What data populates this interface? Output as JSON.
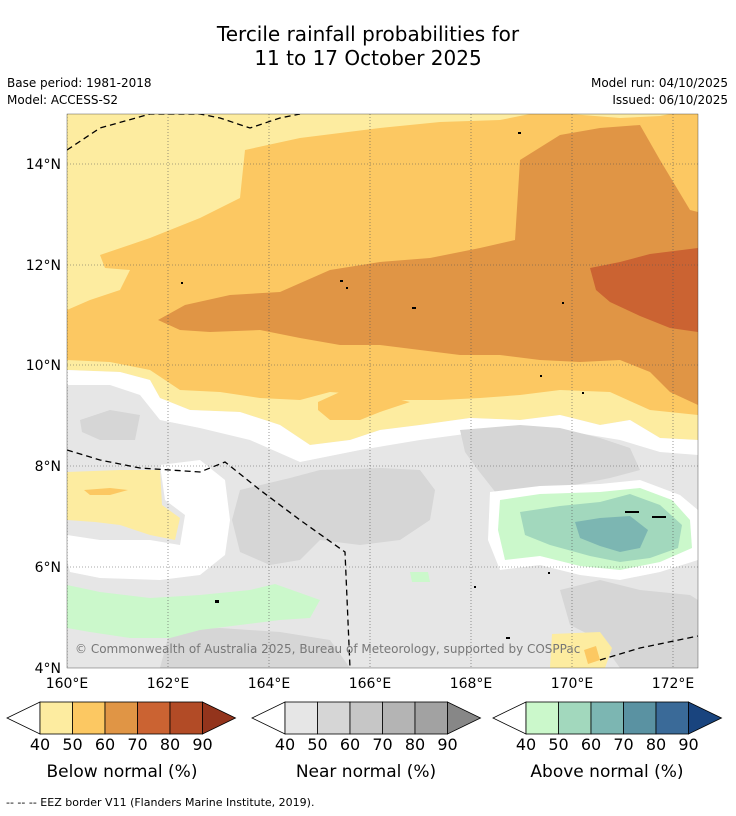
{
  "title": {
    "line1": "Tercile rainfall probabilities for",
    "line2": "11 to 17 October 2025"
  },
  "meta": {
    "base_period": "Base period: 1981-2018",
    "model": "Model: ACCESS-S2",
    "model_run": "Model run: 04/10/2025",
    "issued": "Issued: 06/10/2025"
  },
  "map": {
    "lat_labels": [
      "14°N",
      "12°N",
      "10°N",
      "8°N",
      "6°N",
      "4°N"
    ],
    "lon_labels": [
      "160°E",
      "162°E",
      "164°E",
      "166°E",
      "168°E",
      "170°E",
      "172°E"
    ],
    "copyright": "© Commonwealth of Australia 2025, Bureau of Meteorology, supported by COSPPac"
  },
  "colorbars": [
    {
      "label": "Below normal (%)",
      "ticks": [
        "40",
        "50",
        "60",
        "70",
        "80",
        "90"
      ],
      "colors": [
        "#fdeca0",
        "#fcc862",
        "#e09545",
        "#cb6332",
        "#b24b26",
        "#93341c"
      ]
    },
    {
      "label": "Near normal (%)",
      "ticks": [
        "40",
        "50",
        "60",
        "70",
        "80",
        "90"
      ],
      "colors": [
        "#e6e6e6",
        "#d6d6d6",
        "#c6c6c6",
        "#b4b4b4",
        "#a2a2a2",
        "#878787"
      ]
    },
    {
      "label": "Above normal (%)",
      "ticks": [
        "40",
        "50",
        "60",
        "70",
        "80",
        "90"
      ],
      "colors": [
        "#cbf8cb",
        "#a2d8bd",
        "#7cb6b2",
        "#5a92a2",
        "#3a6a98",
        "#19447e"
      ]
    }
  ],
  "footnote": "--  --  -- EEZ border V11 (Flanders Marine Institute, 2019)."
}
